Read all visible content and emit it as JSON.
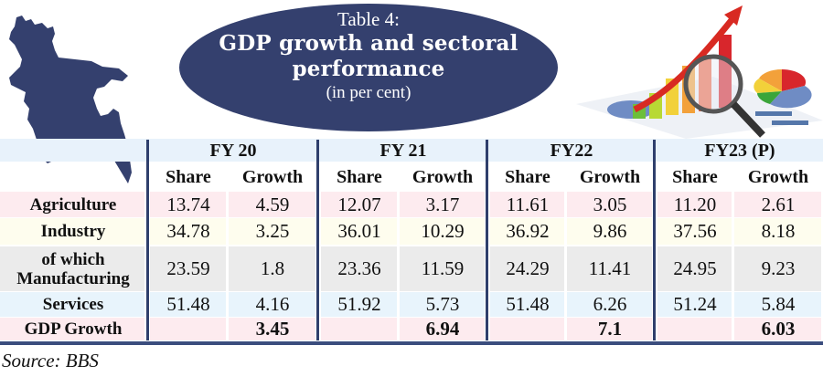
{
  "title": {
    "table_number": "Table 4:",
    "line1": "GDP growth and sectoral",
    "line2": "performance",
    "unit": "(in per cent)"
  },
  "colors": {
    "navy": "#34406e",
    "header_band": "#e8f2fb",
    "row_pink": "#fdebef",
    "row_cream": "#fefdee",
    "row_gray": "#ebebeb",
    "row_blue": "#e8f4fc"
  },
  "icons": {
    "map": "bangladesh-map-icon",
    "graphic": "growth-chart-magnifier-icon"
  },
  "table": {
    "years": [
      "FY 20",
      "FY 21",
      "FY22",
      "FY23 (P)"
    ],
    "subheaders": [
      "Share",
      "Growth",
      "Share",
      "Growth",
      "Share",
      "Growth",
      "Share",
      "Growth"
    ],
    "rows": [
      {
        "label": "Agriculture",
        "values": [
          "13.74",
          "4.59",
          "12.07",
          "3.17",
          "11.61",
          "3.05",
          "11.20",
          "2.61"
        ]
      },
      {
        "label": "Industry",
        "values": [
          "34.78",
          "3.25",
          "36.01",
          "10.29",
          "36.92",
          "9.86",
          "37.56",
          "8.18"
        ]
      },
      {
        "label_line1": "of which",
        "label_line2": "Manufacturing",
        "values": [
          "23.59",
          "1.8",
          "23.36",
          "11.59",
          "24.29",
          "11.41",
          "24.95",
          "9.23"
        ]
      },
      {
        "label": "Services",
        "values": [
          "51.48",
          "4.16",
          "51.92",
          "5.73",
          "51.48",
          "6.26",
          "51.24",
          "5.84"
        ]
      },
      {
        "label": "GDP Growth",
        "values": [
          "",
          "3.45",
          "",
          "6.94",
          "",
          "7.1",
          "",
          "6.03"
        ]
      }
    ]
  },
  "source": "Source: BBS"
}
